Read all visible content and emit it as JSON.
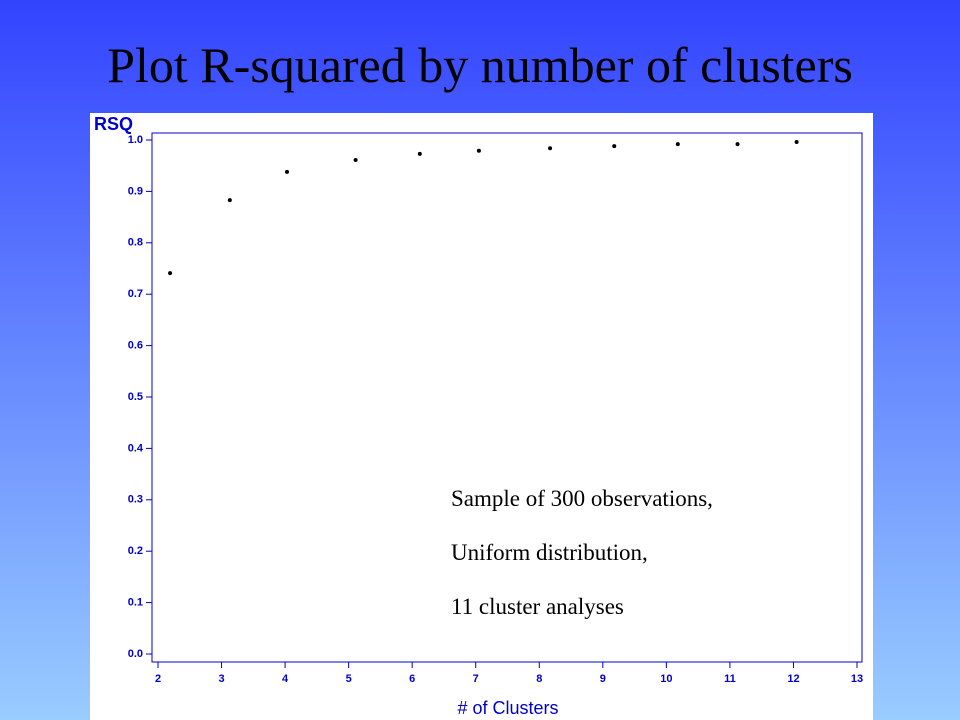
{
  "chart_data": {
    "type": "scatter",
    "title": "Plot R-squared by number of clusters",
    "x_label": "# of Clusters",
    "y_label": "RSQ",
    "x": [
      2.19,
      3.13,
      4.03,
      5.11,
      6.12,
      7.05,
      8.17,
      9.18,
      10.18,
      11.12,
      12.05
    ],
    "values": [
      0.741,
      0.883,
      0.938,
      0.961,
      0.973,
      0.979,
      0.984,
      0.988,
      0.992,
      0.992,
      0.996
    ],
    "color": "#000000",
    "axis_color": "#0000cc",
    "xlim": [
      2,
      13
    ],
    "xticks": [
      2,
      3,
      4,
      5,
      6,
      7,
      8,
      9,
      10,
      11,
      12,
      13
    ],
    "ylim": [
      0,
      1
    ],
    "yticks": [
      {
        "value": 0,
        "label": "0.0"
      },
      {
        "value": 0.1,
        "label": "0.1"
      },
      {
        "value": 0.2,
        "label": "0.2"
      },
      {
        "value": 0.3,
        "label": "0.3"
      },
      {
        "value": 0.4,
        "label": "0.4"
      },
      {
        "value": 0.5,
        "label": "0.5"
      },
      {
        "value": 0.6,
        "label": "0.6"
      },
      {
        "value": 0.7,
        "label": "0.7"
      },
      {
        "value": 0.8,
        "label": "0.8"
      },
      {
        "value": 0.9,
        "label": "0.9"
      },
      {
        "value": 1,
        "label": "1.0"
      }
    ],
    "annotations": [
      "Sample of 300 observations,",
      "Uniform distribution,",
      "11 cluster analyses"
    ]
  }
}
